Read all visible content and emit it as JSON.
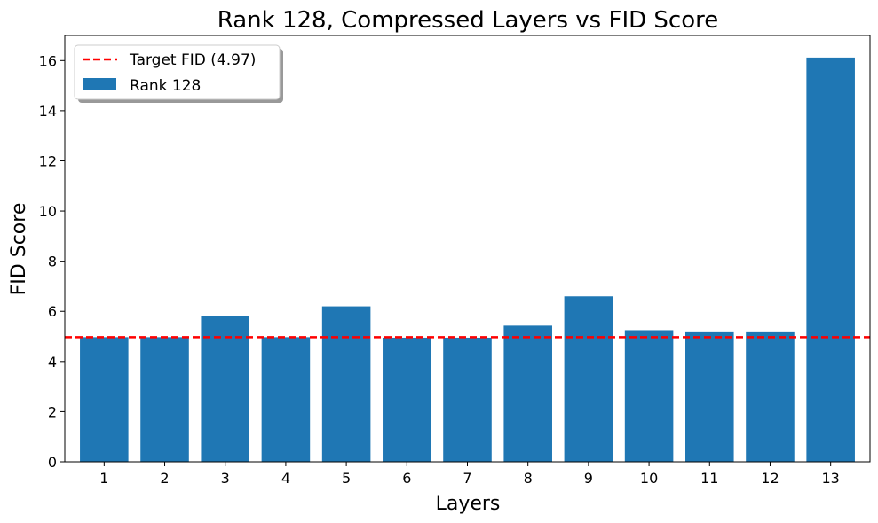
{
  "chart_data": {
    "type": "bar",
    "title": "Rank 128, Compressed Layers vs FID Score",
    "xlabel": "Layers",
    "ylabel": "FID Score",
    "categories": [
      "1",
      "2",
      "3",
      "4",
      "5",
      "6",
      "7",
      "8",
      "9",
      "10",
      "11",
      "12",
      "13"
    ],
    "series": [
      {
        "name": "Rank 128",
        "color": "#1f77b4",
        "values": [
          4.97,
          4.97,
          5.82,
          4.97,
          6.2,
          4.95,
          4.95,
          5.43,
          6.6,
          5.25,
          5.2,
          5.2,
          16.12
        ]
      }
    ],
    "reference_line": {
      "label": "Target FID (4.97)",
      "value": 4.97,
      "color": "#ff0000",
      "style": "dashed"
    },
    "ylim": [
      0,
      17
    ],
    "yticks": [
      0,
      2,
      4,
      6,
      8,
      10,
      12,
      14,
      16
    ],
    "grid": false,
    "legend_position": "top-left"
  }
}
